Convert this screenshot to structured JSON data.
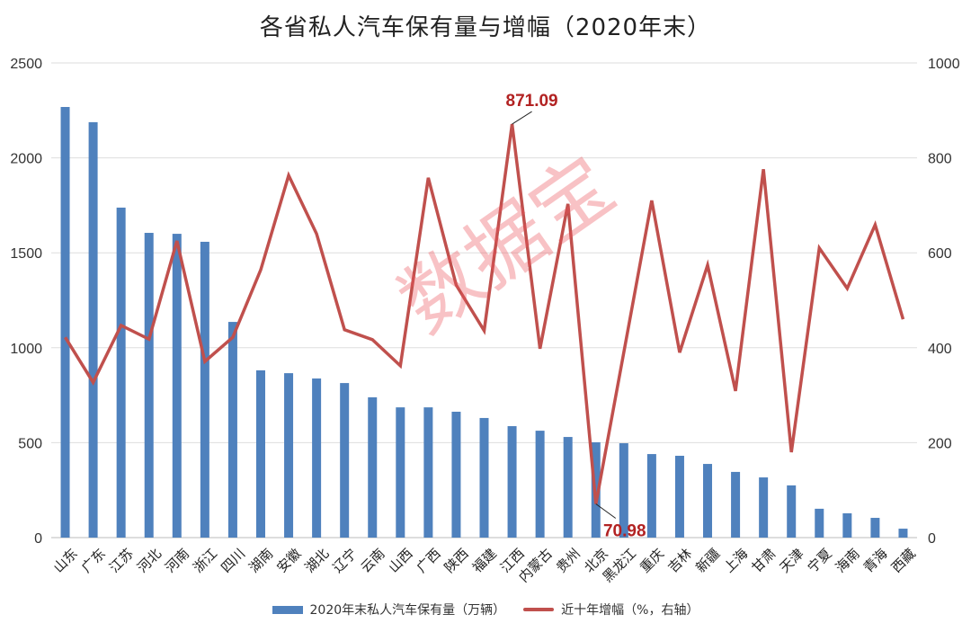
{
  "chart_data": {
    "type": "bar+line",
    "title": "各省私人汽车保有量与增幅（2020年末）",
    "categories": [
      "山东",
      "广东",
      "江苏",
      "河北",
      "河南",
      "浙江",
      "四川",
      "湖南",
      "安徽",
      "湖北",
      "辽宁",
      "云南",
      "山西",
      "广西",
      "陕西",
      "福建",
      "江西",
      "内蒙古",
      "贵州",
      "北京",
      "黑龙江",
      "重庆",
      "吉林",
      "新疆",
      "上海",
      "甘肃",
      "天津",
      "宁夏",
      "海南",
      "青海",
      "西藏"
    ],
    "series": [
      {
        "name": "2020年末私人汽车保有量（万辆）",
        "type": "bar",
        "axis": "left",
        "color": "#4f81bd",
        "values": [
          2268,
          2188,
          1738,
          1605,
          1600,
          1558,
          1136,
          881,
          866,
          838,
          814,
          739,
          686,
          686,
          663,
          630,
          587,
          563,
          530,
          502,
          497,
          440,
          431,
          388,
          346,
          317,
          275,
          152,
          128,
          104,
          47
        ]
      },
      {
        "name": "近十年增幅（%，右轴）",
        "type": "line",
        "axis": "right",
        "color": "#c0504d",
        "values": [
          422,
          327,
          447,
          418,
          625,
          371,
          422,
          564,
          763,
          640,
          438,
          417,
          362,
          758,
          532,
          436,
          871.09,
          398,
          703,
          70.98,
          390,
          710,
          390,
          574,
          309,
          776,
          180,
          610,
          525,
          659,
          460
        ]
      }
    ],
    "annotations": [
      {
        "category": "江西",
        "label": "871.09"
      },
      {
        "category": "北京",
        "label": "70.98"
      }
    ],
    "left_axis": {
      "min": 0,
      "max": 2500,
      "ticks": [
        "0",
        "500",
        "1000",
        "1500",
        "2000",
        "2500"
      ]
    },
    "right_axis": {
      "min": 0,
      "max": 1000,
      "ticks": [
        "0",
        "200",
        "400",
        "600",
        "800",
        "1000"
      ]
    },
    "grid": true,
    "legend_position": "bottom",
    "annotation_color": "#b22222"
  },
  "watermark": "数据宝"
}
